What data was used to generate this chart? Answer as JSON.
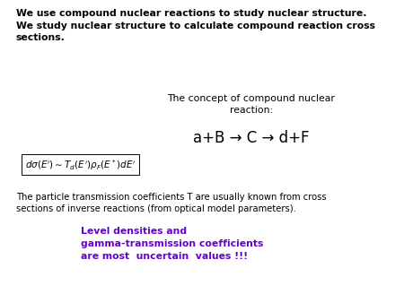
{
  "bg_color": "#ffffff",
  "top_bold_text": "We use compound nuclear reactions to study nuclear structure.\nWe study nuclear structure to calculate compound reaction cross\nsections.",
  "concept_text": "The concept of compound nuclear\nreaction:",
  "reaction_text": "a+B → C → d+F",
  "formula_text": "$d\\sigma(E') \\sim T_d(E')\\rho_F(E^*)dE'$",
  "particle_text": "The particle transmission coefficients T are usually known from cross\nsections of inverse reactions (from optical model parameters).",
  "bottom_bold_text": "Level densities and\ngamma-transmission coefficients\nare most  uncertain  values !!!",
  "bottom_color": "#6600cc",
  "fig_width": 4.5,
  "fig_height": 3.38,
  "dpi": 100
}
